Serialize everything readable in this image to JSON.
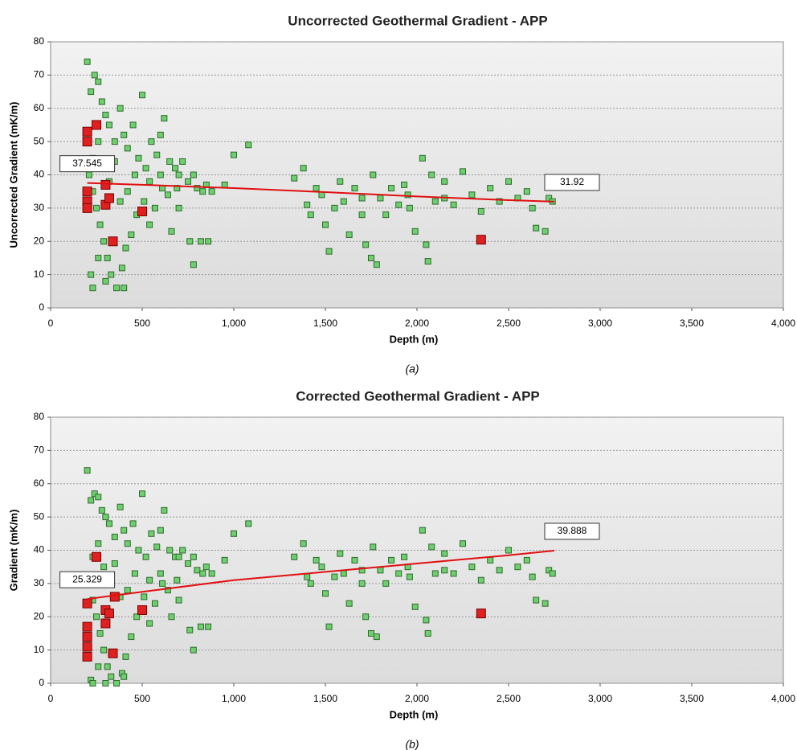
{
  "chart_data": [
    {
      "type": "scatter",
      "title": "Uncorrected Geothermal Gradient - APP",
      "xlabel": "Depth (m)",
      "ylabel": "Uncorrected Gradient (mK/m)",
      "caption": "(a)",
      "xlim": [
        0,
        4000
      ],
      "xticks": [
        0,
        500,
        {
          "value": 1000,
          "label": "1,000"
        },
        {
          "value": 1500,
          "label": "1,500"
        },
        {
          "value": 2000,
          "label": "2,000"
        },
        {
          "value": 2500,
          "label": "2,500"
        },
        {
          "value": 3000,
          "label": "3,000"
        },
        {
          "value": 3500,
          "label": "3,500"
        },
        {
          "value": 4000,
          "label": "4,000"
        }
      ],
      "ylim": [
        0,
        80
      ],
      "yticks": [
        0,
        10,
        20,
        30,
        40,
        50,
        60,
        70,
        80
      ],
      "grid": true,
      "series": [
        {
          "color": "#6fcf6f",
          "marker": "small",
          "x": [
            200,
            220,
            240,
            260,
            280,
            300,
            320,
            350,
            380,
            400,
            420,
            450,
            480,
            500,
            520,
            550,
            580,
            600,
            620,
            650,
            680,
            700,
            720,
            750,
            780,
            800,
            830,
            850,
            880,
            950,
            1000,
            1080,
            210,
            230,
            250,
            270,
            290,
            310,
            330,
            360,
            390,
            410,
            440,
            470,
            510,
            540,
            570,
            610,
            640,
            660,
            700,
            760,
            780,
            820,
            860,
            220,
            230,
            260,
            300,
            400,
            230,
            260,
            290,
            320,
            350,
            380,
            420,
            460,
            540,
            600,
            690,
            1330,
            1380,
            1420,
            1450,
            1480,
            1500,
            1520,
            1550,
            1580,
            1600,
            1630,
            1660,
            1700,
            1720,
            1750,
            1760,
            1780,
            1800,
            1830,
            1860,
            1900,
            1930,
            1960,
            1990,
            2030,
            2050,
            2060,
            2080,
            2100,
            2150,
            2200,
            2250,
            2300,
            2350,
            2400,
            2450,
            2500,
            2550,
            2600,
            2630,
            2650,
            2700,
            2720,
            2740,
            1400,
            1700,
            1950,
            2150
          ],
          "values": [
            74,
            65,
            70,
            68,
            62,
            58,
            55,
            50,
            60,
            52,
            48,
            55,
            45,
            64,
            42,
            50,
            46,
            52,
            57,
            44,
            42,
            40,
            44,
            38,
            40,
            36,
            35,
            37,
            35,
            37,
            46,
            49,
            40,
            35,
            30,
            25,
            20,
            15,
            10,
            6,
            12,
            18,
            22,
            28,
            32,
            25,
            30,
            36,
            34,
            23,
            30,
            20,
            13,
            20,
            20,
            10,
            6,
            15,
            8,
            6,
            45,
            50,
            42,
            38,
            44,
            32,
            35,
            40,
            38,
            40,
            36,
            39,
            42,
            28,
            36,
            34,
            25,
            17,
            30,
            38,
            32,
            22,
            36,
            28,
            19,
            15,
            40,
            13,
            33,
            28,
            36,
            31,
            37,
            30,
            23,
            45,
            19,
            14,
            40,
            32,
            38,
            31,
            41,
            34,
            29,
            36,
            32,
            38,
            33,
            35,
            30,
            24,
            23,
            33,
            32,
            31,
            33,
            34,
            33
          ]
        },
        {
          "color": "#e02020",
          "marker": "large",
          "x": [
            200,
            200,
            200,
            200,
            200,
            250,
            300,
            300,
            320,
            340,
            500,
            2350
          ],
          "values": [
            53,
            50,
            35,
            32,
            30,
            55,
            37,
            31,
            33,
            20,
            29,
            20.5
          ]
        },
        {
          "color": "#e01010",
          "mode": "line",
          "x": [
            200,
            500,
            1000,
            1500,
            2000,
            2500,
            2750
          ],
          "values": [
            37.545,
            37,
            36,
            34.8,
            33.5,
            32.4,
            31.92
          ]
        }
      ]
    },
    {
      "type": "scatter",
      "title": "Corrected Geothermal Gradient - APP",
      "xlabel": "Depth (m)",
      "ylabel": "Gradient (mK/m)",
      "caption": "(b)",
      "xlim": [
        0,
        4000
      ],
      "xticks": [
        0,
        500,
        {
          "value": 1000,
          "label": "1,000"
        },
        {
          "value": 1500,
          "label": "1,500"
        },
        {
          "value": 2000,
          "label": "2,000"
        },
        {
          "value": 2500,
          "label": "2,500"
        },
        {
          "value": 3000,
          "label": "3,000"
        },
        {
          "value": 3500,
          "label": "3,500"
        },
        {
          "value": 4000,
          "label": "4,000"
        }
      ],
      "ylim": [
        0,
        80
      ],
      "yticks": [
        0,
        10,
        20,
        30,
        40,
        50,
        60,
        70,
        80
      ],
      "grid": true,
      "series": [
        {
          "color": "#6fcf6f",
          "marker": "small",
          "x": [
            200,
            220,
            240,
            260,
            280,
            300,
            320,
            350,
            380,
            400,
            420,
            450,
            480,
            500,
            520,
            550,
            580,
            600,
            620,
            650,
            680,
            700,
            720,
            750,
            780,
            800,
            830,
            850,
            880,
            950,
            1000,
            1080,
            210,
            230,
            250,
            270,
            290,
            310,
            330,
            360,
            390,
            410,
            440,
            470,
            510,
            540,
            570,
            610,
            640,
            660,
            700,
            760,
            780,
            820,
            860,
            220,
            230,
            260,
            300,
            400,
            230,
            260,
            290,
            320,
            350,
            380,
            420,
            460,
            540,
            600,
            690,
            1330,
            1380,
            1420,
            1450,
            1480,
            1500,
            1520,
            1550,
            1580,
            1600,
            1630,
            1660,
            1700,
            1720,
            1750,
            1760,
            1780,
            1800,
            1830,
            1860,
            1900,
            1930,
            1960,
            1990,
            2030,
            2050,
            2060,
            2080,
            2100,
            2150,
            2200,
            2250,
            2300,
            2350,
            2400,
            2450,
            2500,
            2550,
            2600,
            2630,
            2650,
            2700,
            2720,
            2740,
            1400,
            1700,
            1950,
            2150
          ],
          "values": [
            64,
            55,
            57,
            56,
            52,
            50,
            48,
            44,
            53,
            46,
            42,
            48,
            40,
            57,
            38,
            45,
            41,
            46,
            52,
            40,
            38,
            38,
            40,
            36,
            38,
            34,
            33,
            35,
            33,
            37,
            45,
            48,
            30,
            25,
            20,
            15,
            10,
            5,
            2,
            0,
            3,
            8,
            14,
            20,
            26,
            18,
            24,
            30,
            28,
            20,
            25,
            16,
            10,
            17,
            17,
            1,
            0,
            5,
            0,
            2,
            38,
            42,
            35,
            30,
            36,
            26,
            28,
            33,
            31,
            33,
            31,
            38,
            42,
            30,
            37,
            35,
            27,
            17,
            32,
            39,
            33,
            24,
            37,
            30,
            20,
            15,
            41,
            14,
            34,
            30,
            37,
            33,
            38,
            32,
            23,
            46,
            19,
            15,
            41,
            33,
            39,
            33,
            42,
            35,
            31,
            37,
            34,
            40,
            35,
            37,
            32,
            25,
            24,
            34,
            33,
            32,
            34,
            35,
            34
          ]
        },
        {
          "color": "#e02020",
          "marker": "large",
          "x": [
            200,
            200,
            200,
            200,
            200,
            250,
            300,
            300,
            320,
            340,
            350,
            500,
            2350
          ],
          "values": [
            24,
            17,
            14,
            11,
            8,
            38,
            22,
            18,
            21,
            9,
            26,
            22,
            21
          ]
        },
        {
          "color": "#e01010",
          "mode": "line",
          "x": [
            200,
            500,
            1000,
            1500,
            2000,
            2500,
            2750
          ],
          "values": [
            25.329,
            27.5,
            31,
            33.5,
            36,
            38.5,
            39.888
          ]
        }
      ]
    }
  ]
}
